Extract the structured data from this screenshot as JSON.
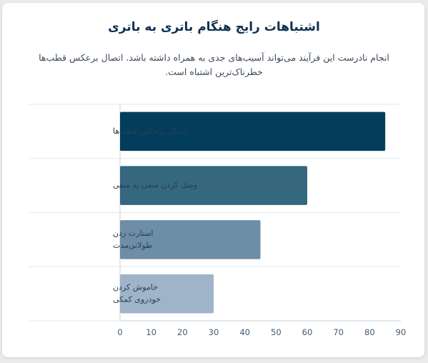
{
  "chart_data": {
    "type": "bar",
    "orientation": "horizontal",
    "title": "اشتباهات رایج هنگام باتری به باتری",
    "subtitle": "انجام نادرست این فرآیند می‌تواند آسیب‌های جدی به همراه داشته باشد. اتصال برعکس قطب‌ها خطرناک‌ترین اشتباه است.",
    "categories": [
      [
        "اتصال برعکس قطب‌ها"
      ],
      [
        "وصل کردن منفی به منفی"
      ],
      [
        "استارت زدن",
        "طولانی‌مدت"
      ],
      [
        "خاموش کردن",
        "خودروی کمکی"
      ]
    ],
    "values": [
      85,
      60,
      45,
      30
    ],
    "colors": [
      "#023e5c",
      "#35677f",
      "#6c8ea6",
      "#9fb4c9"
    ],
    "xticks": [
      0,
      10,
      20,
      30,
      40,
      50,
      60,
      70,
      80,
      90
    ],
    "xlim": [
      0,
      90
    ],
    "xlabel": "",
    "ylabel": "",
    "grid": "horizontal separators",
    "legend": "none"
  }
}
